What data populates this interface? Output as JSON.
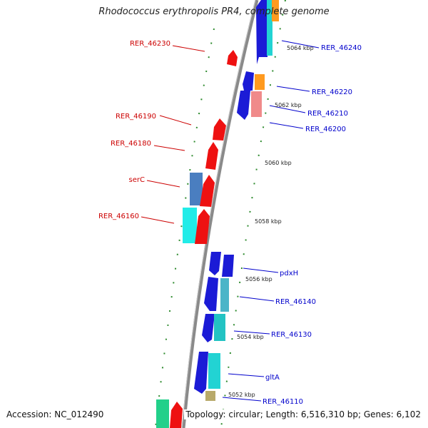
{
  "header": {
    "title": "Rhodococcus erythropolis PR4, complete genome"
  },
  "footer": {
    "accession": "Accession: NC_012490",
    "summary": "Topology: circular; Length: 6,516,310 bp; Genes: 6,102"
  },
  "colors": {
    "forward_label": "#cc0000",
    "reverse_label": "#0000cc",
    "tick": "#228b22",
    "backbone": "#888888"
  },
  "genes_left": [
    {
      "label": "RER_46230"
    },
    {
      "label": "RER_46190"
    },
    {
      "label": "RER_46180"
    },
    {
      "label": "serC"
    },
    {
      "label": "RER_46160"
    }
  ],
  "genes_right": [
    {
      "label": "RER_46240"
    },
    {
      "label": "RER_46220"
    },
    {
      "label": "RER_46210"
    },
    {
      "label": "RER_46200"
    },
    {
      "label": "pdxH"
    },
    {
      "label": "RER_46140"
    },
    {
      "label": "RER_46130"
    },
    {
      "label": "gltA"
    },
    {
      "label": "RER_46110"
    }
  ],
  "scale_ticks": [
    {
      "label": "5064 kbp"
    },
    {
      "label": "5062 kbp"
    },
    {
      "label": "5060 kbp"
    },
    {
      "label": "5058 kbp"
    },
    {
      "label": "5056 kbp"
    },
    {
      "label": "5054 kbp"
    },
    {
      "label": "5052 kbp"
    }
  ]
}
